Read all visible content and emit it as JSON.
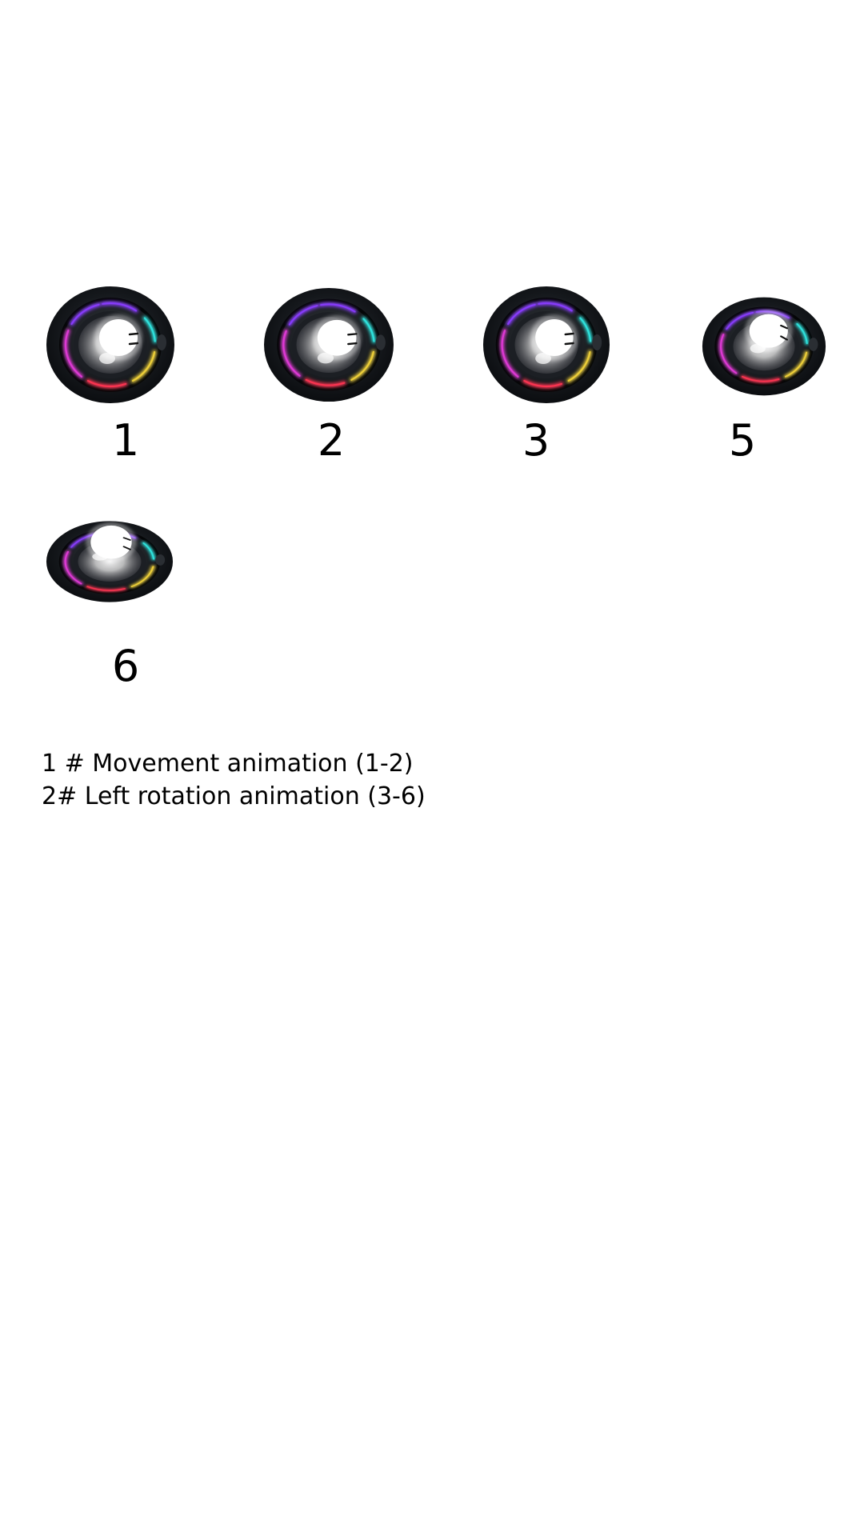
{
  "frames": [
    {
      "label": "1",
      "group": "movement"
    },
    {
      "label": "2",
      "group": "movement"
    },
    {
      "label": "3",
      "group": "rotation"
    },
    {
      "label": "5",
      "group": "rotation"
    },
    {
      "label": "6",
      "group": "rotation"
    }
  ],
  "notes": [
    "1 # Movement animation (1-2)",
    "2# Left rotation animation (3-6)"
  ],
  "colors": {
    "shell": "#0b0d10",
    "ring_magenta": "#e23ad8",
    "ring_violet": "#8a3cff",
    "ring_cyan": "#2fe6e0",
    "ring_yellow": "#f2d33a",
    "ring_red": "#ff3552",
    "eye_white": "#ffffff"
  },
  "icon": "glowing-eye-orb-sprite"
}
